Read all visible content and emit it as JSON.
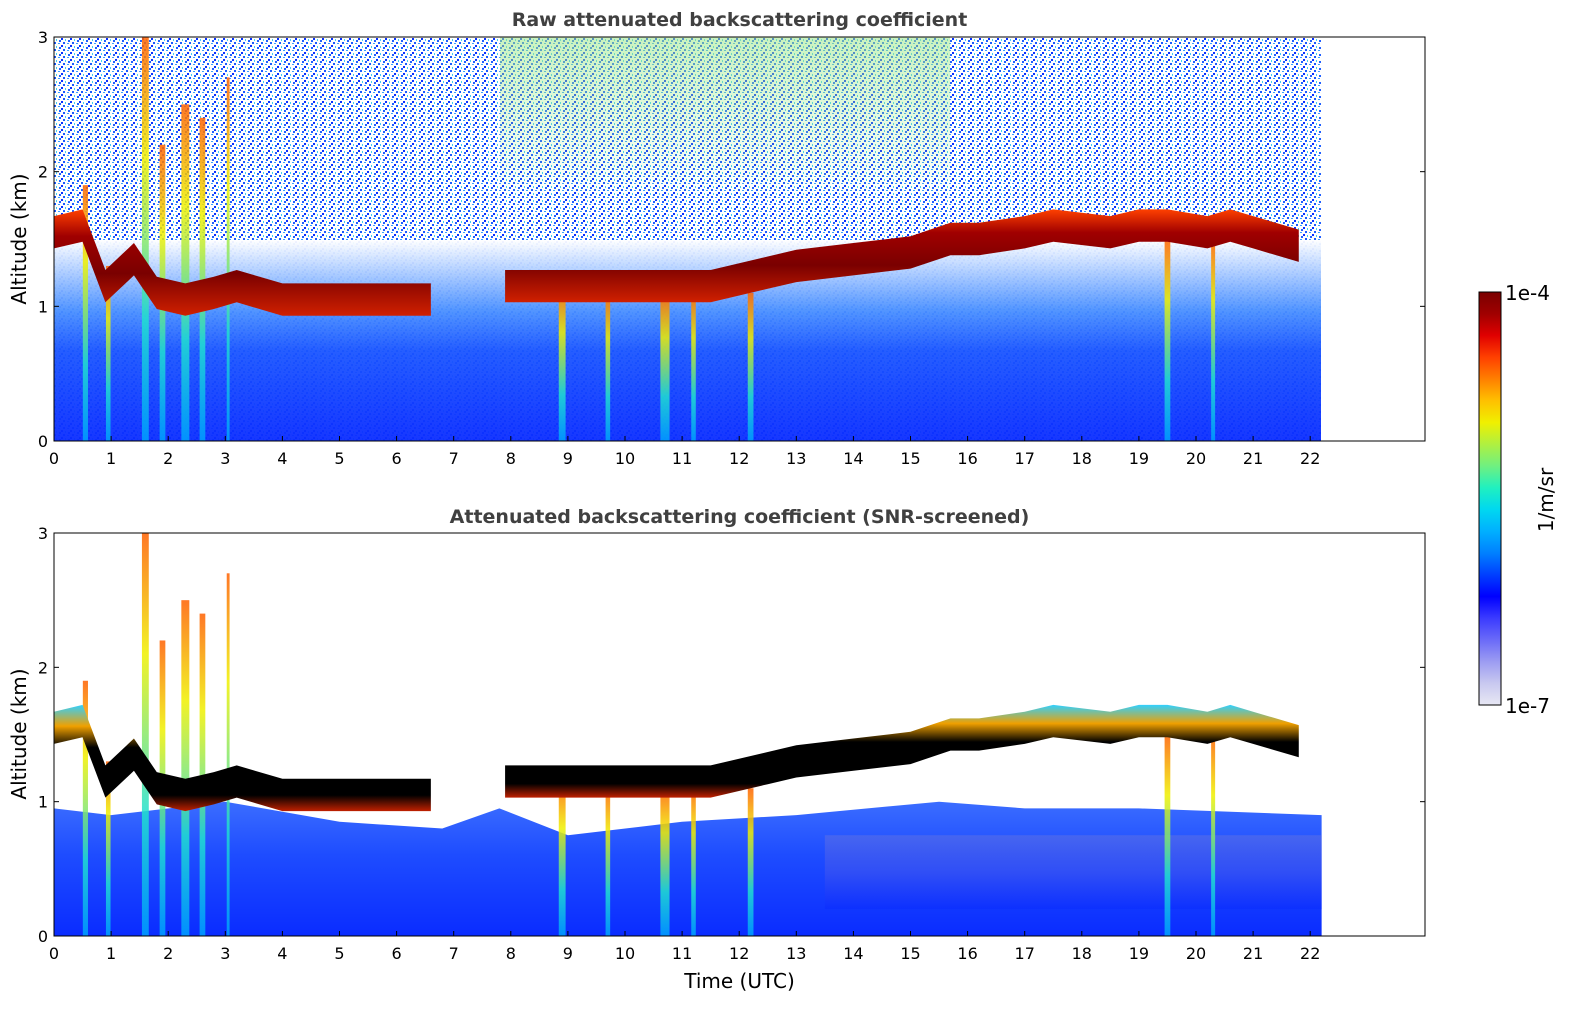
{
  "chart_data": [
    {
      "type": "heatmap",
      "title": "Raw attenuated backscattering coefficient",
      "xlabel": "",
      "ylabel": "Altitude (km)",
      "xlim": [
        0,
        24
      ],
      "ylim": [
        0,
        3
      ],
      "x_ticks": [
        "0",
        "1",
        "2",
        "3",
        "4",
        "5",
        "6",
        "7",
        "8",
        "9",
        "10",
        "11",
        "12",
        "13",
        "14",
        "15",
        "16",
        "17",
        "18",
        "19",
        "20",
        "21",
        "22"
      ],
      "y_ticks": [
        "0",
        "1",
        "2",
        "3"
      ],
      "data_extent_hours": [
        0,
        22.2
      ],
      "screened": false,
      "cloud_base_km": [
        [
          0.0,
          1.55
        ],
        [
          0.5,
          1.6
        ],
        [
          0.9,
          1.15
        ],
        [
          1.4,
          1.35
        ],
        [
          1.8,
          1.1
        ],
        [
          2.3,
          1.05
        ],
        [
          2.8,
          1.1
        ],
        [
          3.2,
          1.15
        ],
        [
          4.0,
          1.05
        ],
        [
          4.5,
          1.05
        ],
        [
          5.2,
          1.05
        ],
        [
          5.6,
          1.05
        ],
        [
          6.6,
          1.05
        ],
        [
          7.9,
          1.15
        ],
        [
          8.5,
          1.15
        ],
        [
          9.5,
          1.15
        ],
        [
          10.5,
          1.15
        ],
        [
          11.5,
          1.15
        ],
        [
          12.5,
          1.25
        ],
        [
          13.0,
          1.3
        ],
        [
          14.0,
          1.35
        ],
        [
          15.0,
          1.4
        ],
        [
          15.7,
          1.5
        ],
        [
          16.2,
          1.5
        ],
        [
          17.0,
          1.55
        ],
        [
          17.5,
          1.6
        ],
        [
          18.5,
          1.55
        ],
        [
          19.0,
          1.6
        ],
        [
          19.5,
          1.6
        ],
        [
          20.2,
          1.55
        ],
        [
          20.6,
          1.6
        ],
        [
          21.0,
          1.55
        ],
        [
          21.8,
          1.45
        ]
      ],
      "gaps_hours": [
        [
          6.6,
          7.9
        ]
      ]
    },
    {
      "type": "heatmap",
      "title": "Attenuated backscattering coefficient (SNR-screened)",
      "xlabel": "Time (UTC)",
      "ylabel": "Altitude (km)",
      "xlim": [
        0,
        24
      ],
      "ylim": [
        0,
        3
      ],
      "x_ticks": [
        "0",
        "1",
        "2",
        "3",
        "4",
        "5",
        "6",
        "7",
        "8",
        "9",
        "10",
        "11",
        "12",
        "13",
        "14",
        "15",
        "16",
        "17",
        "18",
        "19",
        "20",
        "21",
        "22"
      ],
      "y_ticks": [
        "0",
        "1",
        "2",
        "3"
      ],
      "data_extent_hours": [
        0,
        22.2
      ],
      "screened": true
    }
  ],
  "colorbar": {
    "label": "1/m/sr",
    "max_label": "1e-4",
    "min_label": "1e-7",
    "scale": "log",
    "range": [
      1e-07,
      0.0001
    ],
    "colors": [
      "#e8e8f4",
      "#c8c8f0",
      "#9c9cf2",
      "#6a6af8",
      "#3a3aff",
      "#0000ff",
      "#0040ff",
      "#0080ff",
      "#00b0ff",
      "#00d8f0",
      "#20f0c0",
      "#70f080",
      "#b0f040",
      "#f0f000",
      "#ffc000",
      "#ff8000",
      "#ff4000",
      "#e00000",
      "#a00000",
      "#7a0000"
    ]
  },
  "colors": {
    "title": "#404040",
    "frame": "#000000",
    "cloud_core_raw": "#8b0000",
    "cloud_core_screened": "#000000",
    "background_aerosol": "#0a2cff"
  }
}
